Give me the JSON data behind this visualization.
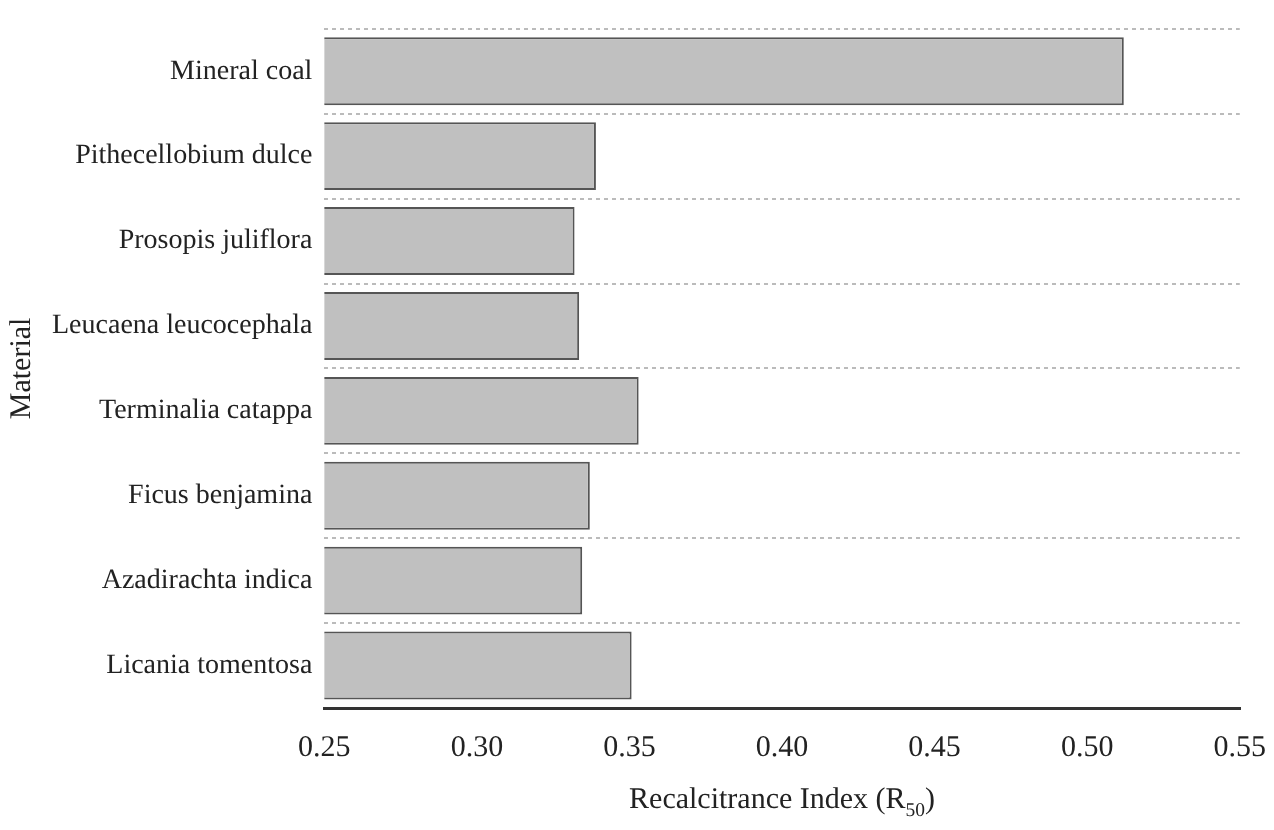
{
  "chart_data": {
    "type": "bar",
    "orientation": "horizontal",
    "xlabel": "Recalcitrance Index (R$_{50}$)",
    "ylabel": "Material",
    "categories": [
      "Mineral coal",
      "Pithecellobium dulce",
      "Prosopis juliflora",
      "Leucaena leucocephala",
      "Terminalia catappa",
      "Ficus benjamina",
      "Azadirachta indica",
      "Licania tomentosa"
    ],
    "values": [
      0.512,
      0.339,
      0.332,
      0.3335,
      0.353,
      0.337,
      0.3345,
      0.3507
    ],
    "color": "#c0c0c0",
    "xlim": [
      0.25,
      0.55
    ],
    "xticks": [
      0.25,
      {
        "value": 0.3,
        "label": "0.30"
      },
      0.35,
      {
        "value": 0.4,
        "label": "0.40"
      },
      0.45,
      {
        "value": 0.5,
        "label": "0.50"
      },
      0.55
    ],
    "grid": "y",
    "legend": false
  }
}
